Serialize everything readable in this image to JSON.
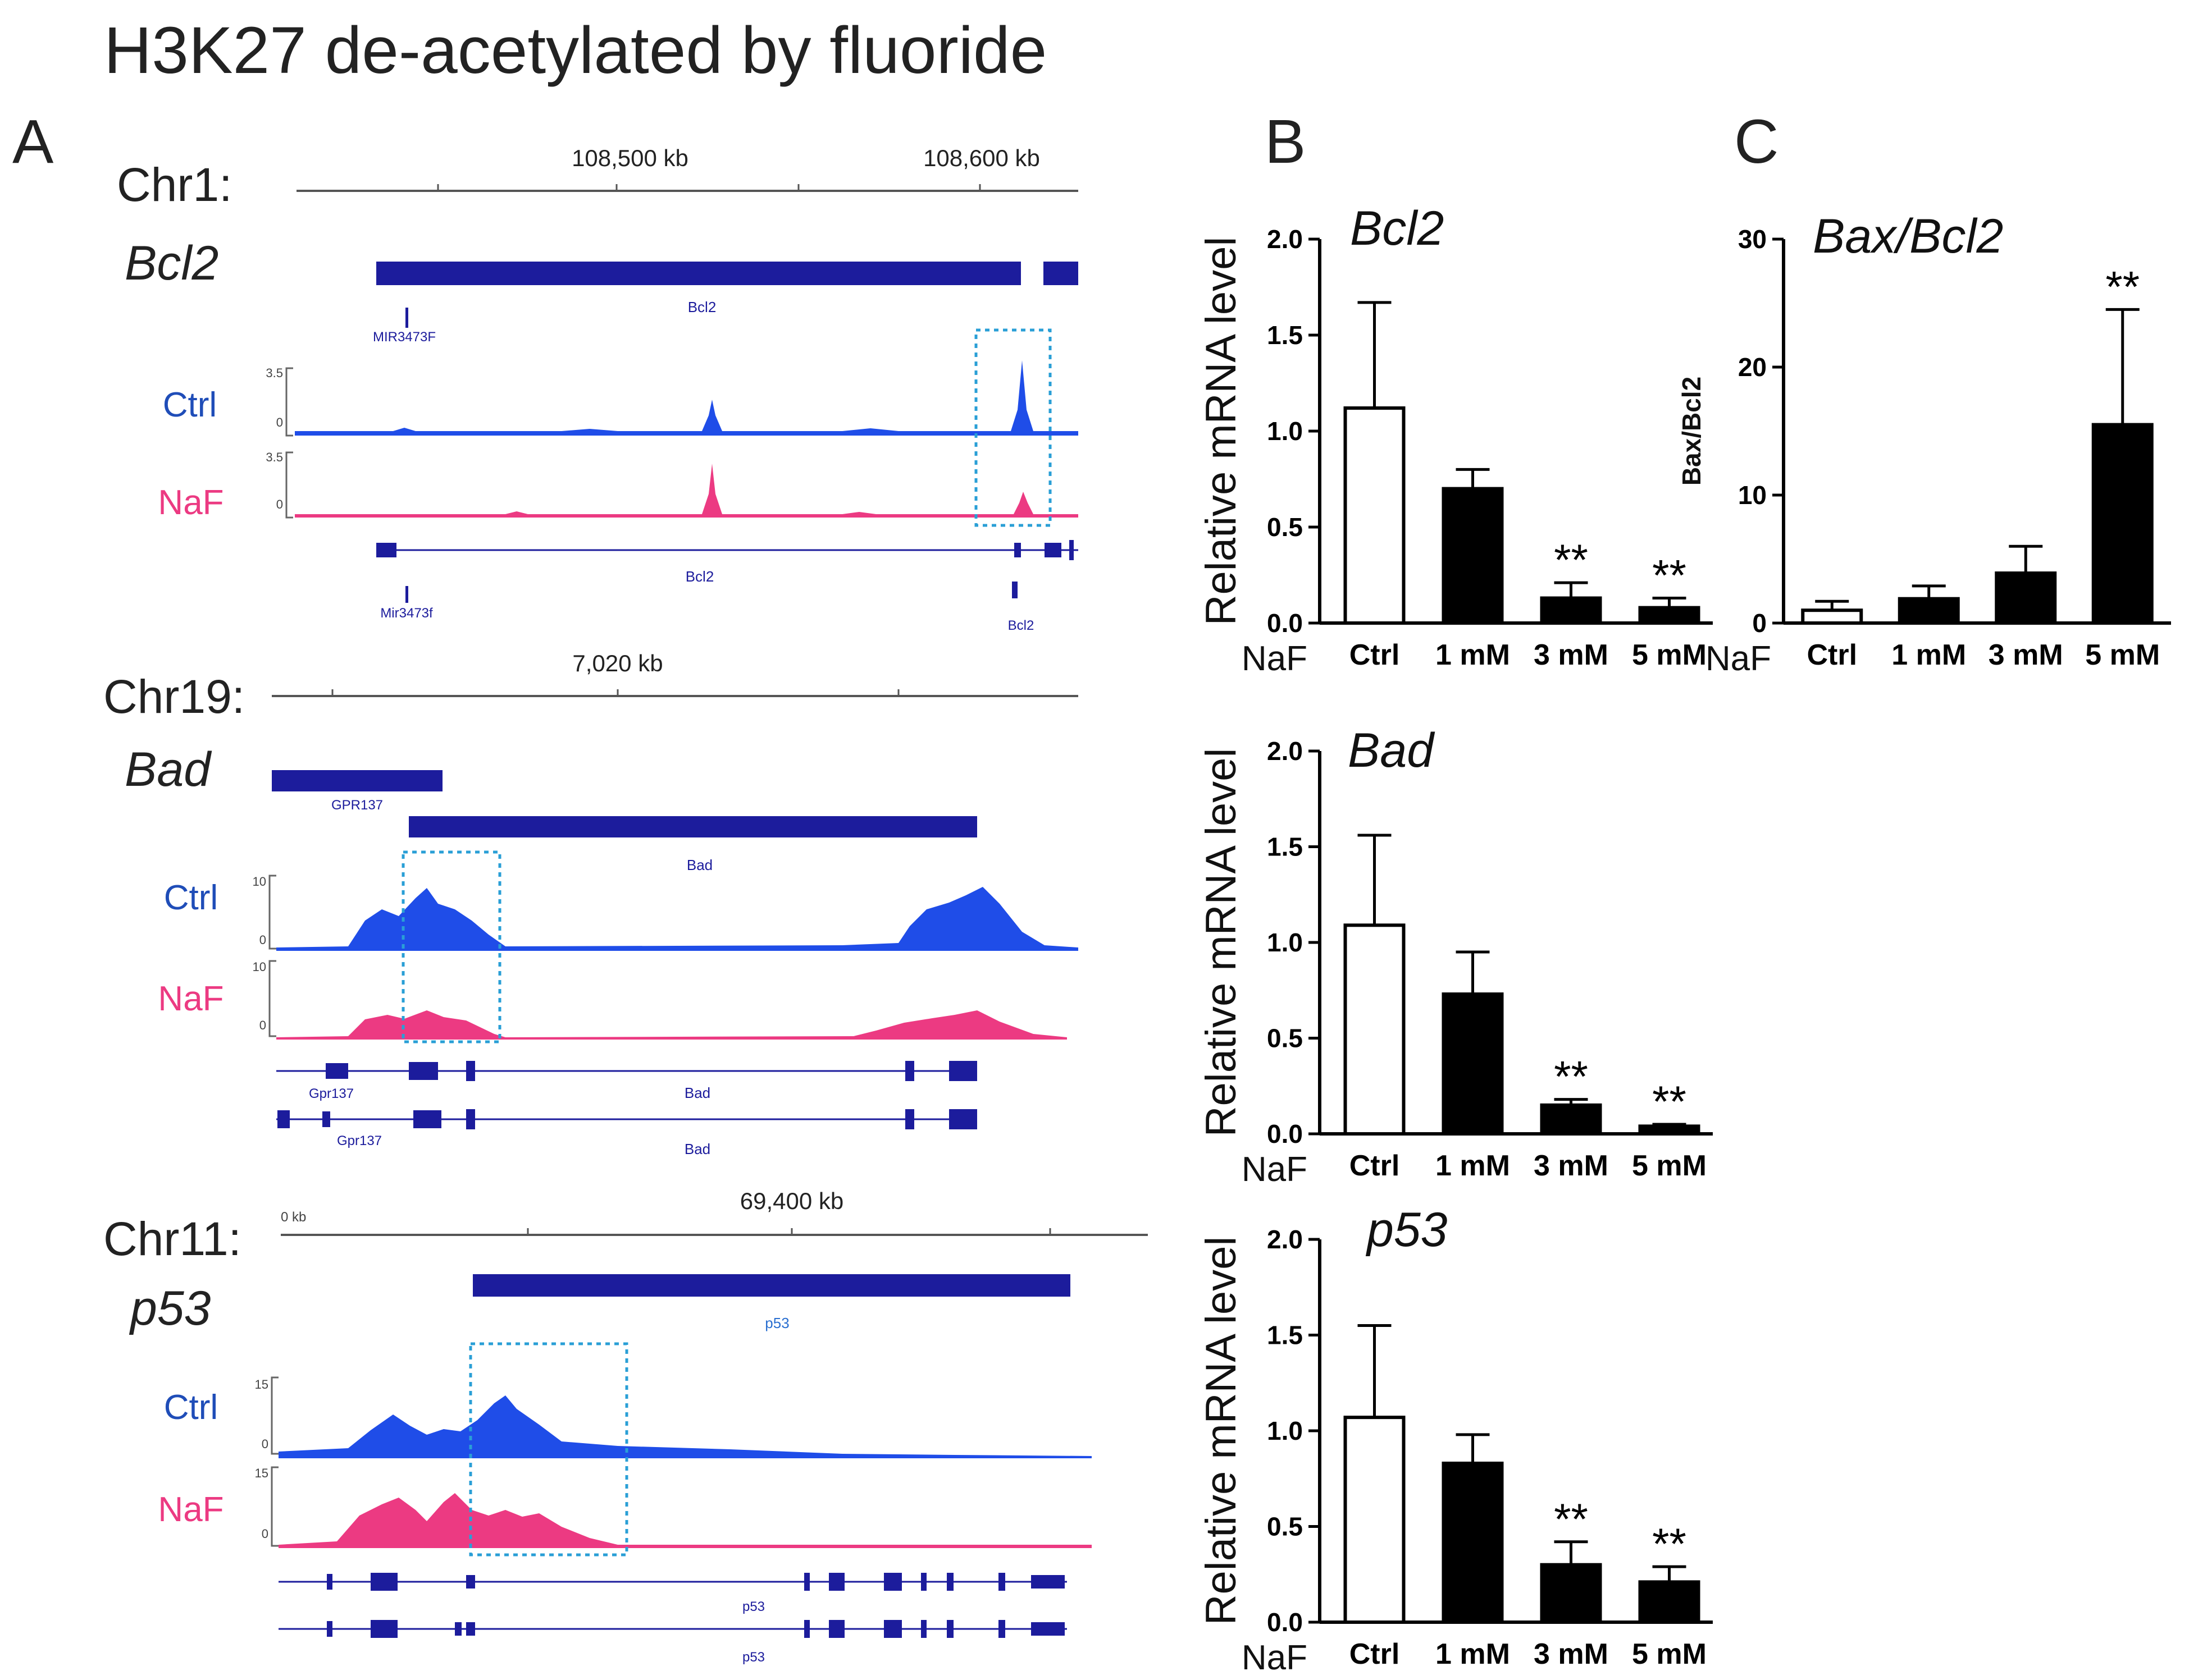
{
  "figure_title": "H3K27 de-acetylated by fluoride",
  "panel_labels": {
    "a": "A",
    "b": "B",
    "c": "C"
  },
  "colors": {
    "ctrl_track": "#1f4de8",
    "naf_track": "#ec3a82",
    "gene_model": "#1c1c9c",
    "highlight_box": "#2a9fd6",
    "bar_fill": "#000000",
    "bar_ctrl_fill": "#ffffff",
    "label_ctrl": "#1f4db8",
    "label_naf": "#ec3a82"
  },
  "browser": {
    "ctrl_label": "Ctrl",
    "naf_label": "NaF",
    "tracks": [
      {
        "chrom": "Chr1:",
        "gene": "Bcl2",
        "ruler_labels": [
          "108,500 kb",
          "108,600 kb"
        ],
        "gene_bar_label": "Bcl2",
        "small_gene_label": "MIR3473F",
        "model_label": "Bcl2",
        "model_label_2": "Bcl2",
        "mir_label": "Mir3473f",
        "ymax": "3.5",
        "ymin": "0"
      },
      {
        "chrom": "Chr19:",
        "gene": "Bad",
        "ruler_labels": [
          "7,020 kb"
        ],
        "gene_bar_label": "Bad",
        "other_gene_label": "GPR137",
        "model_label": "Bad",
        "model_label_2": "Bad",
        "other_model_label": "Gpr137",
        "other_model_label_2": "Gpr137",
        "ymax": "10",
        "ymin": "0"
      },
      {
        "chrom": "Chr11:",
        "gene": "p53",
        "ruler_labels": [
          "69,400 kb"
        ],
        "ruler_left_label": "0 kb",
        "gene_bar_label": "p53",
        "model_label": "p53",
        "model_label_2": "p53",
        "ymax": "15",
        "ymin": "0"
      }
    ]
  },
  "chart_data": [
    {
      "type": "bar",
      "panel": "B",
      "title": "Bcl2",
      "ylabel": "Relative mRNA level",
      "xlabel": "NaF",
      "categories": [
        "Ctrl",
        "1 mM",
        "3 mM",
        "5 mM"
      ],
      "values": [
        1.12,
        0.7,
        0.13,
        0.08
      ],
      "errors": [
        0.55,
        0.1,
        0.08,
        0.05
      ],
      "annotations": [
        "",
        "",
        "**",
        "**"
      ],
      "ylim": [
        0,
        2.0
      ],
      "yticks": [
        "0.0",
        "0.5",
        "1.0",
        "1.5",
        "2.0"
      ]
    },
    {
      "type": "bar",
      "panel": "C",
      "title": "Bax/Bcl2",
      "ylabel": "Bax/Bcl2",
      "xlabel": "NaF",
      "categories": [
        "Ctrl",
        "1 mM",
        "3 mM",
        "5 mM"
      ],
      "values": [
        1.0,
        1.9,
        3.9,
        15.5
      ],
      "errors": [
        0.7,
        1.0,
        2.1,
        9.0
      ],
      "annotations": [
        "",
        "",
        "",
        "**"
      ],
      "ylim": [
        0,
        30
      ],
      "yticks": [
        "0",
        "10",
        "20",
        "30"
      ]
    },
    {
      "type": "bar",
      "panel": "B",
      "title": "Bad",
      "ylabel": "Relative mRNA level",
      "xlabel": "NaF",
      "categories": [
        "Ctrl",
        "1 mM",
        "3 mM",
        "5 mM"
      ],
      "values": [
        1.09,
        0.73,
        0.15,
        0.04
      ],
      "errors": [
        0.47,
        0.22,
        0.03,
        0.01
      ],
      "annotations": [
        "",
        "",
        "**",
        "**"
      ],
      "ylim": [
        0,
        2.0
      ],
      "yticks": [
        "0.0",
        "0.5",
        "1.0",
        "1.5",
        "2.0"
      ]
    },
    {
      "type": "bar",
      "panel": "B",
      "title": "p53",
      "ylabel": "Relative mRNA level",
      "xlabel": "NaF",
      "categories": [
        "Ctrl",
        "1 mM",
        "3 mM",
        "5 mM"
      ],
      "values": [
        1.07,
        0.83,
        0.3,
        0.21
      ],
      "errors": [
        0.48,
        0.15,
        0.12,
        0.08
      ],
      "annotations": [
        "",
        "",
        "**",
        "**"
      ],
      "ylim": [
        0,
        2.0
      ],
      "yticks": [
        "0.0",
        "0.5",
        "1.0",
        "1.5",
        "2.0"
      ]
    }
  ]
}
